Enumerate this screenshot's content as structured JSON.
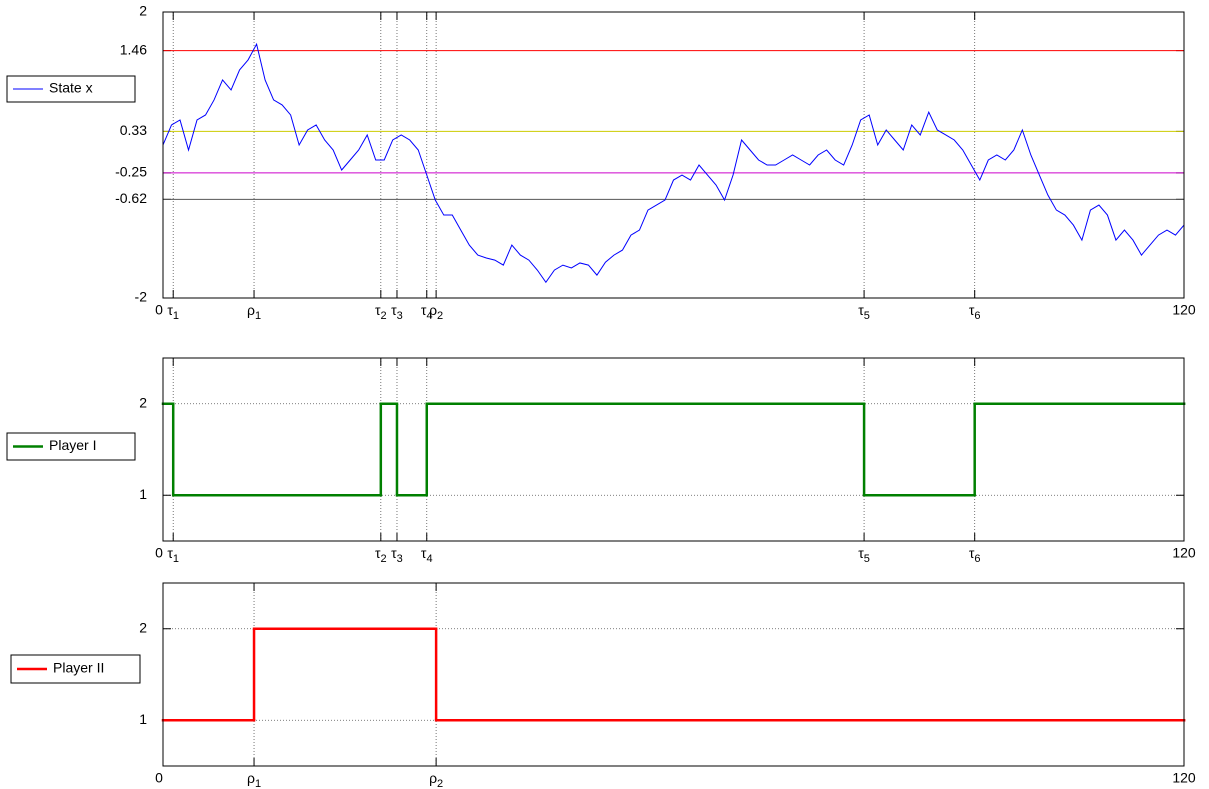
{
  "chart_data": [
    {
      "type": "line",
      "legend": "left",
      "grid": "x",
      "xlim": [
        0,
        120
      ],
      "ylim": [
        -2,
        2
      ],
      "xticks": [
        0,
        {
          "value": 1.2,
          "label": "τ1"
        },
        {
          "value": 10.7,
          "label": "ρ1"
        },
        {
          "value": 25.6,
          "label": "τ2"
        },
        {
          "value": 27.5,
          "label": "τ3"
        },
        {
          "value": 31.0,
          "label": "τ4"
        },
        {
          "value": 32.1,
          "label": "ρ2"
        },
        {
          "value": 82.4,
          "label": "τ5"
        },
        {
          "value": 95.4,
          "label": "τ6"
        },
        120
      ],
      "yticks": [
        -2,
        -0.62,
        -0.25,
        0.33,
        1.46,
        2
      ],
      "hlines": [
        {
          "value": 1.46,
          "color": "#ff0000"
        },
        {
          "value": 0.33,
          "color": "#cccc00"
        },
        {
          "value": -0.25,
          "color": "#cc00cc"
        },
        {
          "value": -0.62,
          "color": "#555555"
        }
      ],
      "series": [
        {
          "name": "State x",
          "color": "#0000ff",
          "x": [
            0,
            1,
            2,
            3,
            4,
            5,
            6,
            7,
            8,
            9,
            10,
            11,
            12,
            13,
            14,
            15,
            16,
            17,
            18,
            19,
            20,
            21,
            22,
            23,
            24,
            25,
            26,
            27,
            28,
            29,
            30,
            31,
            32,
            33,
            34,
            35,
            36,
            37,
            38,
            39,
            40,
            41,
            42,
            43,
            44,
            45,
            46,
            47,
            48,
            49,
            50,
            51,
            52,
            53,
            54,
            55,
            56,
            57,
            58,
            59,
            60,
            61,
            62,
            63,
            64,
            65,
            66,
            67,
            68,
            69,
            70,
            71,
            72,
            73,
            74,
            75,
            76,
            77,
            78,
            79,
            80,
            81,
            82,
            83,
            84,
            85,
            86,
            87,
            88,
            89,
            90,
            91,
            92,
            93,
            94,
            95,
            96,
            97,
            98,
            99,
            100,
            101,
            102,
            103,
            104,
            105,
            106,
            107,
            108,
            109,
            110,
            111,
            112,
            113,
            114,
            115,
            116,
            117,
            118,
            119,
            120
          ],
          "values": [
            0.14,
            0.42,
            0.49,
            0.07,
            0.49,
            0.56,
            0.77,
            1.05,
            0.91,
            1.19,
            1.33,
            1.55,
            1.05,
            0.77,
            0.7,
            0.56,
            0.14,
            0.35,
            0.42,
            0.21,
            0.07,
            -0.21,
            -0.07,
            0.07,
            0.28,
            -0.07,
            -0.07,
            0.21,
            0.28,
            0.21,
            0.07,
            -0.28,
            -0.63,
            -0.84,
            -0.84,
            -1.05,
            -1.26,
            -1.4,
            -1.44,
            -1.47,
            -1.54,
            -1.26,
            -1.4,
            -1.47,
            -1.61,
            -1.78,
            -1.61,
            -1.54,
            -1.58,
            -1.51,
            -1.54,
            -1.68,
            -1.5,
            -1.4,
            -1.33,
            -1.12,
            -1.05,
            -0.77,
            -0.7,
            -0.63,
            -0.35,
            -0.28,
            -0.35,
            -0.14,
            -0.28,
            -0.42,
            -0.63,
            -0.28,
            0.21,
            0.07,
            -0.07,
            -0.14,
            -0.14,
            -0.07,
            0.0,
            -0.07,
            -0.14,
            0.0,
            0.07,
            -0.07,
            -0.14,
            0.14,
            0.49,
            0.56,
            0.14,
            0.35,
            0.21,
            0.07,
            0.42,
            0.28,
            0.6,
            0.35,
            0.28,
            0.21,
            0.07,
            -0.14,
            -0.35,
            -0.07,
            0.0,
            -0.07,
            0.07,
            0.35,
            0.0,
            -0.28,
            -0.56,
            -0.77,
            -0.84,
            -0.98,
            -1.19,
            -0.77,
            -0.7,
            -0.84,
            -1.19,
            -1.05,
            -1.19,
            -1.4,
            -1.26,
            -1.12,
            -1.05,
            -1.12,
            -0.98
          ]
        }
      ]
    },
    {
      "type": "line",
      "step": "post",
      "legend": "left",
      "grid": "both",
      "xlim": [
        0,
        120
      ],
      "ylim": [
        0.5,
        2.5
      ],
      "xticks": [
        0,
        {
          "value": 1.2,
          "label": "τ1"
        },
        {
          "value": 25.6,
          "label": "τ2"
        },
        {
          "value": 27.5,
          "label": "τ3"
        },
        {
          "value": 31.0,
          "label": "τ4"
        },
        {
          "value": 82.4,
          "label": "τ5"
        },
        {
          "value": 95.4,
          "label": "τ6"
        },
        120
      ],
      "yticks": [
        1,
        2
      ],
      "series": [
        {
          "name": "Player I",
          "color": "#008000",
          "x": [
            0,
            1.2,
            25.6,
            27.5,
            31.0,
            82.4,
            95.4,
            120
          ],
          "values": [
            2,
            1,
            2,
            1,
            2,
            1,
            2,
            2
          ]
        }
      ]
    },
    {
      "type": "line",
      "step": "post",
      "legend": "left",
      "grid": "both",
      "xlim": [
        0,
        120
      ],
      "ylim": [
        0.5,
        2.5
      ],
      "xticks": [
        0,
        {
          "value": 10.7,
          "label": "ρ1"
        },
        {
          "value": 32.1,
          "label": "ρ2"
        },
        120
      ],
      "yticks": [
        1,
        2
      ],
      "series": [
        {
          "name": "Player II",
          "color": "#ff0000",
          "x": [
            0,
            10.7,
            32.1,
            120
          ],
          "values": [
            1,
            2,
            1,
            1
          ]
        }
      ]
    }
  ]
}
